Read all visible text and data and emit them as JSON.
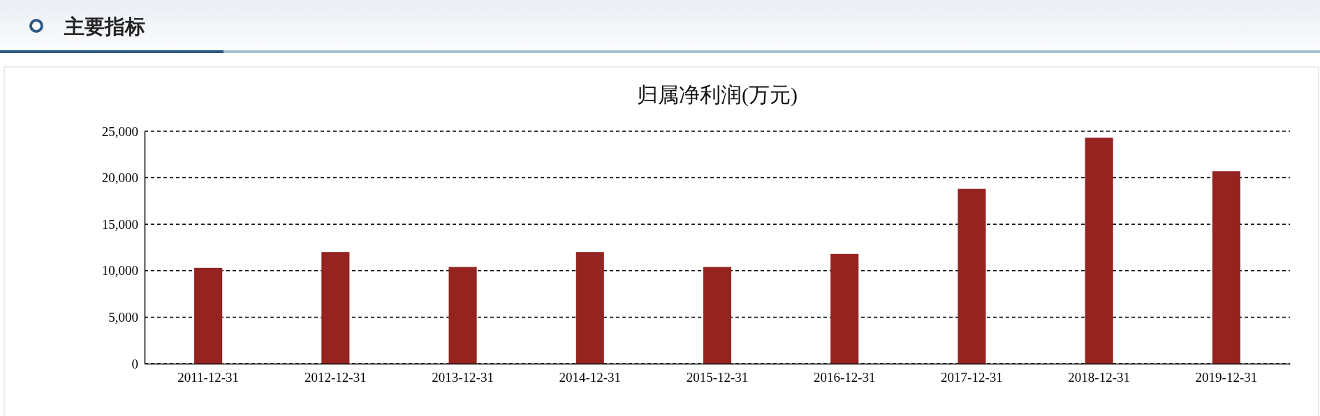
{
  "chart_data": {
    "type": "bar",
    "title": "归属净利润(万元)",
    "annotations": [
      "主要指标"
    ],
    "categories": [
      "2011-12-31",
      "2012-12-31",
      "2013-12-31",
      "2014-12-31",
      "2015-12-31",
      "2016-12-31",
      "2017-12-31",
      "2018-12-31",
      "2019-12-31"
    ],
    "values": [
      10300,
      12000,
      10400,
      12000,
      10400,
      11800,
      18800,
      24300,
      20700
    ],
    "color": "#95231f",
    "ylim": [
      0,
      25000
    ],
    "yticks": [
      {
        "value": 0,
        "label": "0"
      },
      {
        "value": 5000,
        "label": "5,000"
      },
      {
        "value": 10000,
        "label": "10,000"
      },
      {
        "value": 15000,
        "label": "15,000"
      },
      {
        "value": 20000,
        "label": "20,000"
      },
      {
        "value": 25000,
        "label": "25,000"
      }
    ],
    "grid": "y"
  }
}
